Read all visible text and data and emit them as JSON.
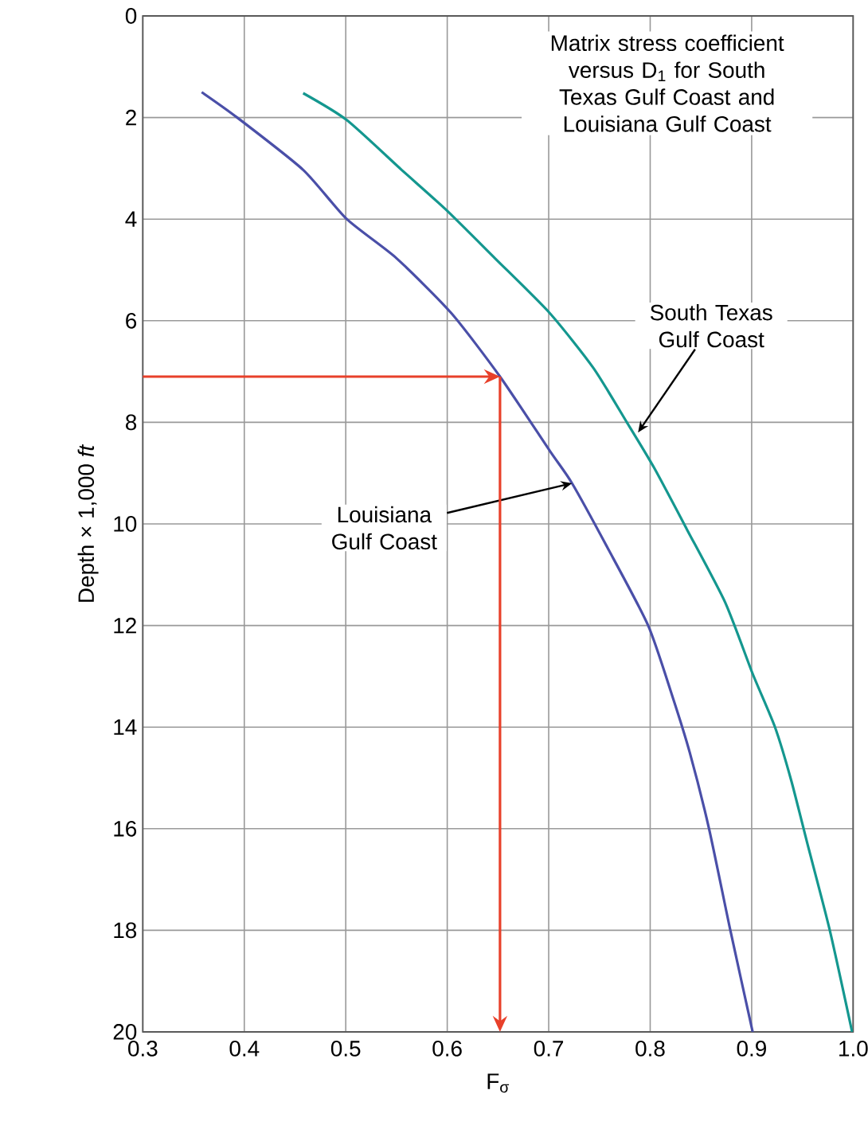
{
  "chart_data": {
    "type": "line",
    "title": "Matrix stress coefficient versus D$_{1}$ for South Texas Gulf Coast and Louisiana Gulf Coast",
    "xlabel": "F$_{σ}$",
    "ylabel": "Depth × 1,000 *ft*",
    "xlim": [
      0.3,
      1.0
    ],
    "ylim": [
      20,
      0
    ],
    "xticks": [
      0.3,
      0.4,
      0.5,
      0.6,
      0.7,
      0.8,
      0.9,
      {
        "value": 1.0,
        "label": "1.0"
      }
    ],
    "yticks": [
      0,
      2,
      4,
      6,
      8,
      10,
      12,
      14,
      16,
      18,
      20
    ],
    "grid": true,
    "series": [
      {
        "color": "#4a4fa8",
        "x": [
          0.358,
          0.393,
          0.458,
          0.501,
          0.55,
          0.604,
          0.652,
          0.701,
          0.723,
          0.758,
          0.798,
          0.822,
          0.839,
          0.858,
          0.879,
          0.901
        ],
        "values": [
          1.5,
          2.0,
          3.03,
          4.0,
          4.77,
          5.85,
          7.1,
          8.56,
          9.2,
          10.47,
          12.0,
          13.4,
          14.5,
          16.0,
          18.0,
          20.0
        ]
      },
      {
        "color": "#14978f",
        "x": [
          0.458,
          0.501,
          0.555,
          0.598,
          0.647,
          0.701,
          0.744,
          0.777,
          0.804,
          0.836,
          0.874,
          0.901,
          0.923,
          0.939,
          0.955,
          0.977,
          0.999
        ],
        "values": [
          1.52,
          2.05,
          3.03,
          3.8,
          4.77,
          5.85,
          6.93,
          8.0,
          8.9,
          10.1,
          11.55,
          12.95,
          14.0,
          15.05,
          16.3,
          18.0,
          20.0
        ]
      }
    ],
    "ref_lines": [
      {
        "axis": "y",
        "value": 7.1,
        "color": "#e8402a"
      },
      {
        "axis": "x",
        "value": 0.652,
        "color": "#e8402a"
      }
    ],
    "annotations": [
      {
        "text": "South Texas Gulf Coast",
        "x": 0.788,
        "y": 8.2
      },
      {
        "text": "Louisiana Gulf Coast",
        "x": 0.723,
        "y": 9.2
      }
    ]
  }
}
